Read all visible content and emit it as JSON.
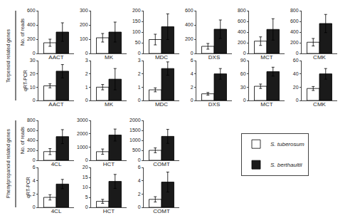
{
  "chart_data": [
    {
      "type": "bar",
      "categories": [
        null
      ],
      "xlabel": "AACT",
      "ylabel": "No. of reads",
      "annotations": [
        "Terpenoid related genes"
      ],
      "legend": "lower right",
      "tick_labels": "y",
      "grid": false,
      "series": [
        {
          "name": "S. tuberosum",
          "color": "#ffffff",
          "values": [
            150
          ],
          "errors": [
            50
          ]
        },
        {
          "name": "S. berthaultii",
          "color": "#1a1a1a",
          "values": [
            300
          ],
          "errors": [
            130
          ]
        }
      ],
      "ylim": [
        0,
        600
      ],
      "yticks": [
        0,
        200,
        400,
        600
      ]
    },
    {
      "type": "bar",
      "categories": [
        null
      ],
      "xlabel": "MK",
      "tick_labels": "y",
      "grid": false,
      "series": [
        {
          "name": "S. tuberosum",
          "color": "#ffffff",
          "values": [
            110
          ],
          "errors": [
            30
          ]
        },
        {
          "name": "S. berthaultii",
          "color": "#1a1a1a",
          "values": [
            150
          ],
          "errors": [
            70
          ]
        }
      ],
      "ylim": [
        0,
        300
      ],
      "yticks": [
        0,
        100,
        200,
        300
      ]
    },
    {
      "type": "bar",
      "categories": [
        null
      ],
      "xlabel": "MDC",
      "tick_labels": "y",
      "grid": false,
      "series": [
        {
          "name": "S. tuberosum",
          "color": "#ffffff",
          "values": [
            65
          ],
          "errors": [
            25
          ]
        },
        {
          "name": "S. berthaultii",
          "color": "#1a1a1a",
          "values": [
            125
          ],
          "errors": [
            60
          ]
        }
      ],
      "ylim": [
        0,
        200
      ],
      "yticks": [
        0,
        50,
        100,
        150,
        200
      ]
    },
    {
      "type": "bar",
      "categories": [
        null
      ],
      "xlabel": "DXS",
      "tick_labels": "y",
      "grid": false,
      "series": [
        {
          "name": "S. tuberosum",
          "color": "#ffffff",
          "values": [
            100
          ],
          "errors": [
            40
          ]
        },
        {
          "name": "S. berthaultii",
          "color": "#1a1a1a",
          "values": [
            340
          ],
          "errors": [
            130
          ]
        }
      ],
      "ylim": [
        0,
        600
      ],
      "yticks": [
        0,
        200,
        400,
        600
      ]
    },
    {
      "type": "bar",
      "categories": [
        null
      ],
      "xlabel": "MCT",
      "tick_labels": "y",
      "grid": false,
      "series": [
        {
          "name": "S. tuberosum",
          "color": "#ffffff",
          "values": [
            230
          ],
          "errors": [
            80
          ]
        },
        {
          "name": "S. berthaultii",
          "color": "#1a1a1a",
          "values": [
            450
          ],
          "errors": [
            200
          ]
        }
      ],
      "ylim": [
        0,
        800
      ],
      "yticks": [
        0,
        200,
        400,
        600,
        800
      ]
    },
    {
      "type": "bar",
      "categories": [
        null
      ],
      "xlabel": "CMK",
      "tick_labels": "y",
      "grid": false,
      "series": [
        {
          "name": "S. tuberosum",
          "color": "#ffffff",
          "values": [
            210
          ],
          "errors": [
            70
          ]
        },
        {
          "name": "S. berthaultii",
          "color": "#1a1a1a",
          "values": [
            560
          ],
          "errors": [
            170
          ]
        }
      ],
      "ylim": [
        0,
        800
      ],
      "yticks": [
        0,
        200,
        400,
        600,
        800
      ]
    },
    {
      "type": "bar",
      "categories": [
        null
      ],
      "xlabel": "AACT",
      "ylabel": "qRT-PCR",
      "tick_labels": "y",
      "grid": false,
      "series": [
        {
          "name": "S. tuberosum",
          "color": "#ffffff",
          "values": [
            11
          ],
          "errors": [
            1.5
          ]
        },
        {
          "name": "S. berthaultii",
          "color": "#1a1a1a",
          "values": [
            22
          ],
          "errors": [
            5
          ]
        }
      ],
      "ylim": [
        0,
        30
      ],
      "yticks": [
        0,
        10,
        20,
        30
      ]
    },
    {
      "type": "bar",
      "categories": [
        null
      ],
      "xlabel": "MK",
      "tick_labels": "y",
      "grid": false,
      "series": [
        {
          "name": "S. tuberosum",
          "color": "#ffffff",
          "values": [
            1.0
          ],
          "errors": [
            0.2
          ]
        },
        {
          "name": "S. berthaultii",
          "color": "#1a1a1a",
          "values": [
            1.6
          ],
          "errors": [
            0.8
          ]
        }
      ],
      "ylim": [
        0,
        3
      ],
      "yticks": [
        0,
        1,
        2,
        3
      ]
    },
    {
      "type": "bar",
      "categories": [
        null
      ],
      "xlabel": "MDC",
      "tick_labels": "y",
      "grid": false,
      "series": [
        {
          "name": "S. tuberosum",
          "color": "#ffffff",
          "values": [
            0.8
          ],
          "errors": [
            0.15
          ]
        },
        {
          "name": "S. berthaultii",
          "color": "#1a1a1a",
          "values": [
            2.4
          ],
          "errors": [
            0.5
          ]
        }
      ],
      "ylim": [
        0,
        3
      ],
      "yticks": [
        0,
        1,
        2,
        3
      ]
    },
    {
      "type": "bar",
      "categories": [
        null
      ],
      "xlabel": "DXS",
      "tick_labels": "y",
      "grid": false,
      "series": [
        {
          "name": "S. tuberosum",
          "color": "#ffffff",
          "values": [
            1.0
          ],
          "errors": [
            0.2
          ]
        },
        {
          "name": "S. berthaultii",
          "color": "#1a1a1a",
          "values": [
            4.0
          ],
          "errors": [
            0.8
          ]
        }
      ],
      "ylim": [
        0,
        6
      ],
      "yticks": [
        0,
        2,
        4,
        6
      ]
    },
    {
      "type": "bar",
      "categories": [
        null
      ],
      "xlabel": "MCT",
      "tick_labels": "y",
      "grid": false,
      "series": [
        {
          "name": "S. tuberosum",
          "color": "#ffffff",
          "values": [
            32
          ],
          "errors": [
            5
          ]
        },
        {
          "name": "S. berthaultii",
          "color": "#1a1a1a",
          "values": [
            65
          ],
          "errors": [
            10
          ]
        }
      ],
      "ylim": [
        0,
        90
      ],
      "yticks": [
        0,
        30,
        60,
        90
      ]
    },
    {
      "type": "bar",
      "categories": [
        null
      ],
      "xlabel": "CMK",
      "tick_labels": "y",
      "grid": false,
      "series": [
        {
          "name": "S. tuberosum",
          "color": "#ffffff",
          "values": [
            18
          ],
          "errors": [
            3
          ]
        },
        {
          "name": "S. berthaultii",
          "color": "#1a1a1a",
          "values": [
            40
          ],
          "errors": [
            8
          ]
        }
      ],
      "ylim": [
        0,
        60
      ],
      "yticks": [
        0,
        20,
        40,
        60
      ]
    },
    {
      "type": "bar",
      "categories": [
        null
      ],
      "xlabel": "4CL",
      "ylabel": "No. of reads",
      "annotations": [
        "Phenylpropanoid related genes"
      ],
      "tick_labels": "y",
      "grid": false,
      "series": [
        {
          "name": "S. tuberosum",
          "color": "#ffffff",
          "values": [
            175
          ],
          "errors": [
            60
          ]
        },
        {
          "name": "S. berthaultii",
          "color": "#1a1a1a",
          "values": [
            475
          ],
          "errors": [
            140
          ]
        }
      ],
      "ylim": [
        0,
        800
      ],
      "yticks": [
        0,
        200,
        400,
        600,
        800
      ]
    },
    {
      "type": "bar",
      "categories": [
        null
      ],
      "xlabel": "HCT",
      "tick_labels": "y",
      "grid": false,
      "series": [
        {
          "name": "S. tuberosum",
          "color": "#ffffff",
          "values": [
            650
          ],
          "errors": [
            200
          ]
        },
        {
          "name": "S. berthaultii",
          "color": "#1a1a1a",
          "values": [
            1900
          ],
          "errors": [
            450
          ]
        }
      ],
      "ylim": [
        0,
        3000
      ],
      "yticks": [
        0,
        1000,
        2000,
        3000
      ]
    },
    {
      "type": "bar",
      "categories": [
        null
      ],
      "xlabel": "COMT",
      "tick_labels": "y",
      "grid": false,
      "series": [
        {
          "name": "S. tuberosum",
          "color": "#ffffff",
          "values": [
            500
          ],
          "errors": [
            120
          ]
        },
        {
          "name": "S. berthaultii",
          "color": "#1a1a1a",
          "values": [
            1200
          ],
          "errors": [
            350
          ]
        }
      ],
      "ylim": [
        0,
        2000
      ],
      "yticks": [
        0,
        500,
        1000,
        1500,
        2000
      ]
    },
    {
      "type": "bar",
      "categories": [
        null
      ],
      "xlabel": "4CL",
      "ylabel": "qRT-PCR",
      "tick_labels": "y",
      "grid": false,
      "series": [
        {
          "name": "S. tuberosum",
          "color": "#ffffff",
          "values": [
            1.5
          ],
          "errors": [
            0.4
          ]
        },
        {
          "name": "S. berthaultii",
          "color": "#1a1a1a",
          "values": [
            3.5
          ],
          "errors": [
            0.7
          ]
        }
      ],
      "ylim": [
        0,
        6
      ],
      "yticks": [
        0,
        2,
        4,
        6
      ]
    },
    {
      "type": "bar",
      "categories": [
        null
      ],
      "xlabel": "HCT",
      "tick_labels": "y",
      "grid": false,
      "series": [
        {
          "name": "S. tuberosum",
          "color": "#ffffff",
          "values": [
            3.0
          ],
          "errors": [
            1.0
          ]
        },
        {
          "name": "S. berthaultii",
          "color": "#1a1a1a",
          "values": [
            13.0
          ],
          "errors": [
            3.5
          ]
        }
      ],
      "ylim": [
        0,
        20
      ],
      "yticks": [
        0,
        5,
        10,
        15,
        20
      ]
    },
    {
      "type": "bar",
      "categories": [
        null
      ],
      "xlabel": "COMT",
      "tick_labels": "y",
      "grid": false,
      "series": [
        {
          "name": "S. tuberosum",
          "color": "#ffffff",
          "values": [
            1.2
          ],
          "errors": [
            0.4
          ]
        },
        {
          "name": "S. berthaultii",
          "color": "#1a1a1a",
          "values": [
            3.8
          ],
          "errors": [
            1.5
          ]
        }
      ],
      "ylim": [
        0,
        6
      ],
      "yticks": [
        0,
        2,
        4,
        6
      ]
    }
  ]
}
